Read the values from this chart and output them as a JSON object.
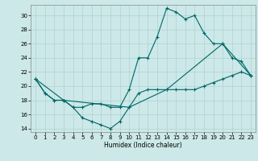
{
  "xlabel": "Humidex (Indice chaleur)",
  "bg_color": "#cce8e8",
  "line_color": "#006666",
  "xlim": [
    -0.5,
    23.5
  ],
  "ylim": [
    13.5,
    31.5
  ],
  "xticks": [
    0,
    1,
    2,
    3,
    4,
    5,
    6,
    7,
    8,
    9,
    10,
    11,
    12,
    13,
    14,
    15,
    16,
    17,
    18,
    19,
    20,
    21,
    22,
    23
  ],
  "yticks": [
    14,
    16,
    18,
    20,
    22,
    24,
    26,
    28,
    30
  ],
  "line1_x": [
    0,
    1,
    2,
    3,
    4,
    5,
    6,
    7,
    8,
    9,
    10,
    11,
    12,
    13,
    14,
    15,
    16,
    17,
    18,
    19,
    20,
    21,
    22,
    23
  ],
  "line1_y": [
    21,
    19,
    18,
    18,
    17,
    15.5,
    15,
    14.5,
    14,
    15,
    17,
    19,
    19.5,
    19.5,
    19.5,
    19.5,
    19.5,
    19.5,
    20,
    20.5,
    21,
    21.5,
    22,
    21.5
  ],
  "line2_x": [
    0,
    1,
    2,
    3,
    4,
    5,
    6,
    7,
    8,
    9,
    10,
    11,
    12,
    13,
    14,
    15,
    16,
    17,
    18,
    19,
    20,
    21,
    22,
    23
  ],
  "line2_y": [
    21,
    19,
    18,
    18,
    17,
    17,
    17.5,
    17.5,
    17,
    17,
    19.5,
    24,
    24,
    27,
    31,
    30.5,
    29.5,
    30,
    27.5,
    26,
    26,
    24,
    23.5,
    21.5
  ],
  "line3_x": [
    0,
    3,
    10,
    14,
    20,
    23
  ],
  "line3_y": [
    21,
    18,
    17,
    19.5,
    26,
    21.5
  ]
}
